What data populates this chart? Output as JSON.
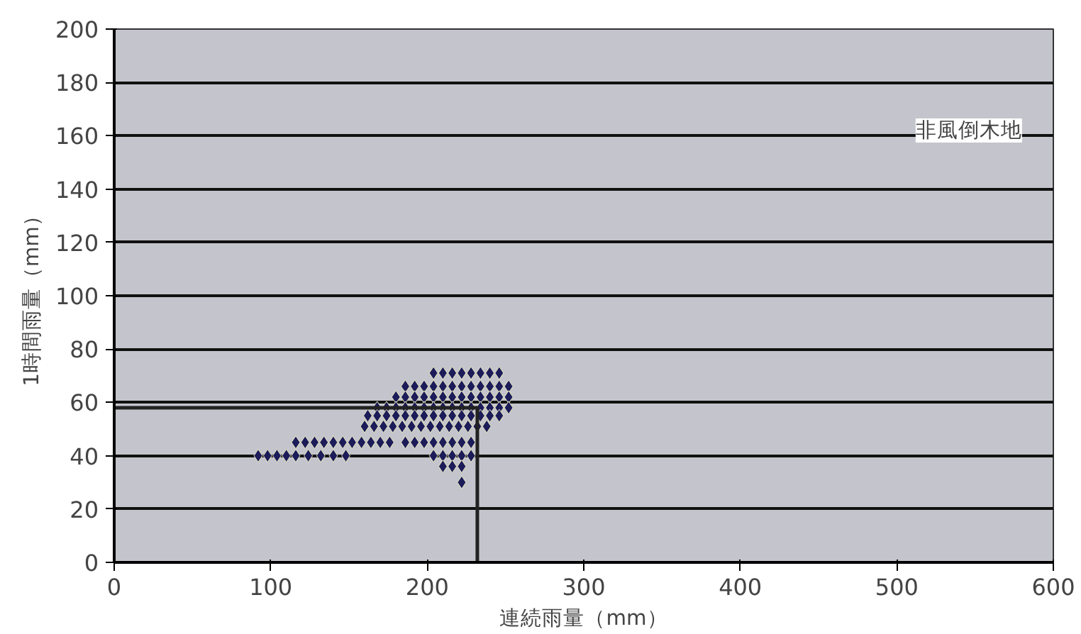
{
  "chart_data": {
    "type": "scatter",
    "xlabel": "連続雨量（mm）",
    "ylabel": "1時間雨量（mm）",
    "annotations": [
      "非風倒木地"
    ],
    "xlim": [
      0,
      600
    ],
    "xticks": [
      0,
      100,
      200,
      300,
      400,
      500,
      600
    ],
    "ylim": [
      0,
      200
    ],
    "yticks": [
      0,
      20,
      40,
      60,
      80,
      100,
      120,
      140,
      160,
      180,
      200
    ],
    "grid": "y",
    "marker": "diamond",
    "series": [
      {
        "color": "#1c1c5a",
        "x": [
          204,
          210,
          216,
          222,
          228,
          234,
          240,
          246,
          186,
          192,
          198,
          204,
          210,
          216,
          222,
          228,
          234,
          240,
          246,
          252,
          180,
          186,
          192,
          198,
          204,
          210,
          216,
          222,
          228,
          234,
          240,
          246,
          252,
          168,
          174,
          180,
          186,
          192,
          198,
          204,
          210,
          216,
          222,
          228,
          234,
          240,
          246,
          252,
          162,
          168,
          174,
          180,
          186,
          192,
          198,
          204,
          210,
          216,
          222,
          228,
          234,
          240,
          246,
          160,
          166,
          172,
          178,
          184,
          190,
          196,
          202,
          208,
          214,
          220,
          226,
          232,
          238,
          116,
          122,
          128,
          134,
          140,
          146,
          152,
          158,
          164,
          170,
          176,
          186,
          192,
          198,
          204,
          210,
          216,
          222,
          228,
          92,
          98,
          104,
          110,
          116,
          124,
          132,
          140,
          148,
          204,
          210,
          216,
          222,
          228,
          210,
          216,
          222,
          222
        ],
        "values": [
          71,
          71,
          71,
          71,
          71,
          71,
          71,
          71,
          66,
          66,
          66,
          66,
          66,
          66,
          66,
          66,
          66,
          66,
          66,
          66,
          62,
          62,
          62,
          62,
          62,
          62,
          62,
          62,
          62,
          62,
          62,
          62,
          62,
          58,
          58,
          58,
          58,
          58,
          58,
          58,
          58,
          58,
          58,
          58,
          58,
          58,
          58,
          58,
          55,
          55,
          55,
          55,
          55,
          55,
          55,
          55,
          55,
          55,
          55,
          55,
          55,
          55,
          55,
          51,
          51,
          51,
          51,
          51,
          51,
          51,
          51,
          51,
          51,
          51,
          51,
          51,
          51,
          45,
          45,
          45,
          45,
          45,
          45,
          45,
          45,
          45,
          45,
          45,
          45,
          45,
          45,
          45,
          45,
          45,
          45,
          45,
          40,
          40,
          40,
          40,
          40,
          40,
          40,
          40,
          40,
          40,
          40,
          40,
          40,
          40,
          36,
          36,
          36,
          30
        ]
      },
      {
        "type": "line",
        "color": "#222222",
        "marker": "none",
        "x": [
          0,
          232,
          232
        ],
        "values": [
          58,
          58,
          0
        ]
      }
    ]
  }
}
